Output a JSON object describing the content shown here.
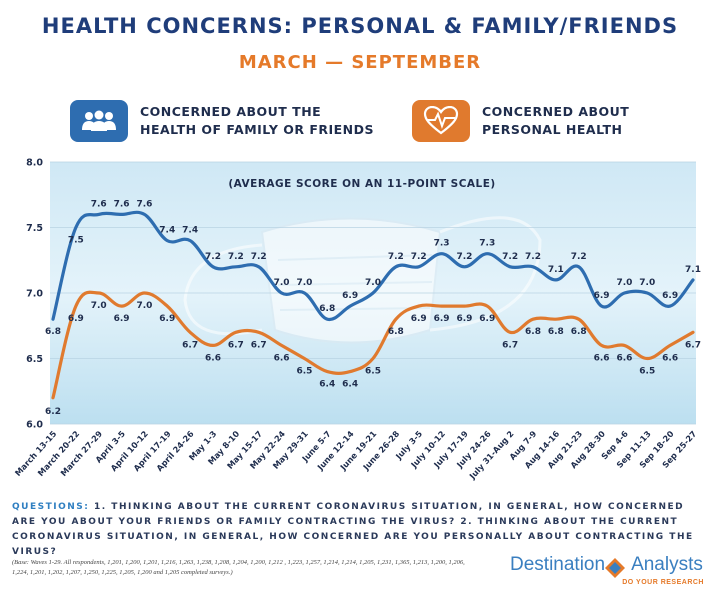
{
  "header": {
    "title": "HEALTH CONCERNS: PERSONAL & FAMILY/FRIENDS",
    "subtitle": "MARCH — SEPTEMBER"
  },
  "legend": {
    "family": {
      "line1": "CONCERNED ABOUT THE",
      "line2": "HEALTH OF FAMILY OR FRIENDS",
      "icon": "people-icon",
      "color": "#2e6db0"
    },
    "personal": {
      "line1": "CONCERNED ABOUT",
      "line2": "PERSONAL HEALTH",
      "icon": "heart-pulse-icon",
      "color": "#e07a2e"
    }
  },
  "chart_data": {
    "type": "line",
    "note": "(AVERAGE SCORE ON AN 11-POINT SCALE)",
    "ylim": [
      6.0,
      8.0
    ],
    "yticks": [
      "6.0",
      "6.5",
      "7.0",
      "7.5",
      "8.0"
    ],
    "categories": [
      "March 13-15",
      "March 20-22",
      "March 27-29",
      "April 3-5",
      "April 10-12",
      "April 17-19",
      "April 24-26",
      "May 1-3",
      "May 8-10",
      "May 15-17",
      "May 22-24",
      "May 29-31",
      "June 5-7",
      "June 12-14",
      "June 19-21",
      "June 26-28",
      "July 3-5",
      "July 10-12",
      "July 17-19",
      "July 24-26",
      "July 31-Aug 2",
      "Aug 7-9",
      "Aug 14-16",
      "Aug 21-23",
      "Aug 28-30",
      "Sep 4-6",
      "Sep 11-13",
      "Sep 18-20",
      "Sep 25-27"
    ],
    "series": [
      {
        "name": "Concerned about the health of family or friends",
        "color": "#2e6db0",
        "values": [
          6.8,
          7.5,
          7.6,
          7.6,
          7.6,
          7.4,
          7.4,
          7.2,
          7.2,
          7.2,
          7.0,
          7.0,
          6.8,
          6.9,
          7.0,
          7.2,
          7.2,
          7.3,
          7.2,
          7.3,
          7.2,
          7.2,
          7.1,
          7.2,
          6.9,
          7.0,
          7.0,
          6.9,
          7.1
        ],
        "labels": [
          "6.8",
          "7.5",
          "7.6",
          "7.6",
          "7.6",
          "7.4",
          "7.4",
          "7.2",
          "7.2",
          "7.2",
          "7.0",
          "7.0",
          "6.8",
          "6.9",
          "7.0",
          "7.2",
          "7.2",
          "7.3",
          "7.2",
          "7.3",
          "7.2",
          "7.2",
          "7.1",
          "7.2",
          "6.9",
          "7.0",
          "7.0",
          "6.9",
          "7.1"
        ]
      },
      {
        "name": "Concerned about personal health",
        "color": "#e07a2e",
        "values": [
          6.2,
          6.9,
          7.0,
          6.9,
          7.0,
          6.9,
          6.7,
          6.6,
          6.7,
          6.7,
          6.6,
          6.5,
          6.4,
          6.4,
          6.5,
          6.8,
          6.9,
          6.9,
          6.9,
          6.9,
          6.7,
          6.8,
          6.8,
          6.8,
          6.6,
          6.6,
          6.5,
          6.6,
          6.7
        ],
        "labels": [
          "6.2",
          "6.9",
          "7.0",
          "6.9",
          "7.0",
          "6.9",
          "6.7",
          "6.6",
          "6.7",
          "6.7",
          "6.6",
          "6.5",
          "6.4",
          "6.4",
          "6.5",
          "6.8",
          "6.9",
          "6.9",
          "6.9",
          "6.9",
          "6.7",
          "6.8",
          "6.8",
          "6.8",
          "6.6",
          "6.6",
          "6.5",
          "6.6",
          "6.7"
        ]
      }
    ]
  },
  "questions": {
    "label": "QUESTIONS:",
    "text": "1. THINKING ABOUT THE CURRENT CORONAVIRUS SITUATION, IN GENERAL, HOW CONCERNED ARE YOU ABOUT YOUR FRIENDS OR FAMILY CONTRACTING THE VIRUS? 2. THINKING ABOUT THE CURRENT CORONAVIRUS SITUATION, IN GENERAL, HOW CONCERNED ARE YOU PERSONALLY ABOUT CONTRACTING THE VIRUS?"
  },
  "base_note": "(Base: Waves 1-29. All respondents, 1,201, 1,200, 1,201, 1,216, 1,263, 1,238, 1,208, 1,204, 1,200, 1,212 , 1,223, 1,257, 1,214, 1,214, 1,205, 1,231, 1,365, 1,213, 1,200, 1,206, 1,224, 1,201, 1,202, 1,207, 1,250, 1,225, 1,205, 1,200 and 1,205 completed surveys.)",
  "brand": {
    "name_part1": "Destination",
    "name_part2": "Analysts",
    "tagline": "DO YOUR RESEARCH"
  }
}
